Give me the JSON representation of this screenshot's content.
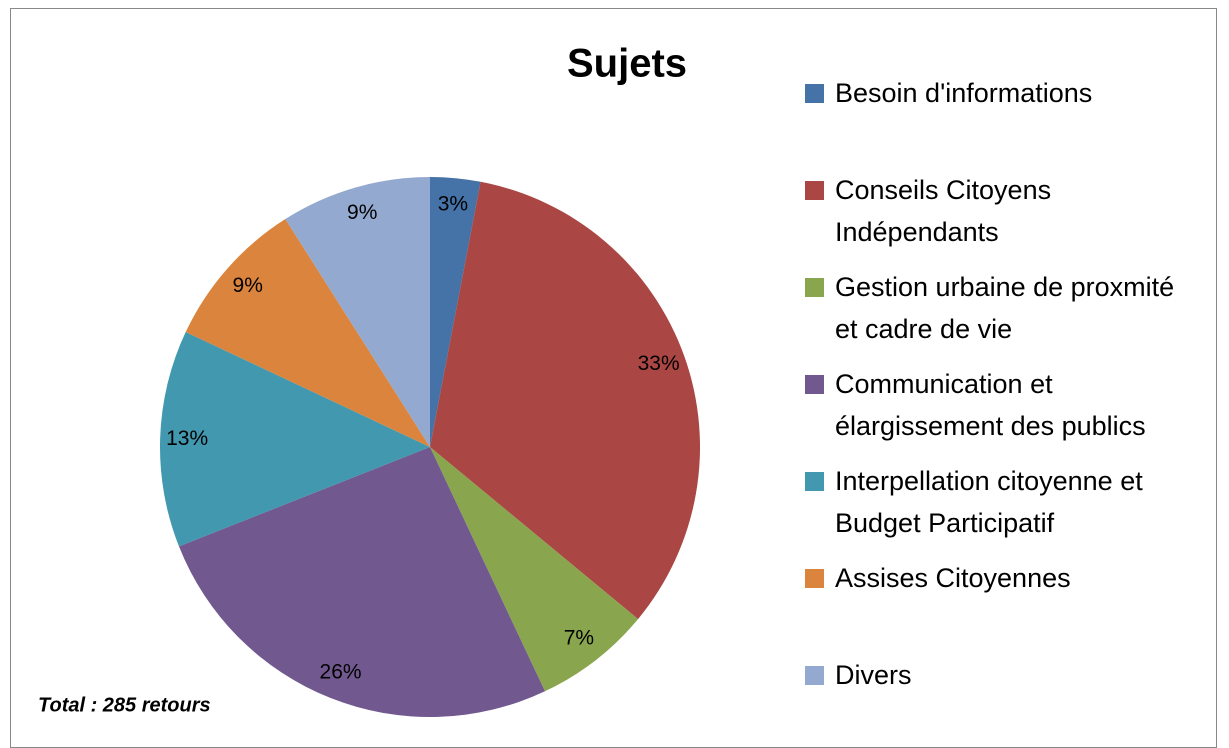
{
  "chart_data": {
    "type": "pie",
    "title": "Sujets",
    "categories": [
      "Besoin d'informations",
      "Conseils Citoyens Indépendants",
      "Gestion urbaine de proxmité et cadre de vie",
      "Communication et élargissement des publics",
      "Interpellation citoyenne et Budget Participatif",
      "Assises Citoyennes",
      "Divers"
    ],
    "values": [
      3,
      33,
      7,
      26,
      13,
      9,
      9
    ],
    "value_labels": [
      "3%",
      "33%",
      "7%",
      "26%",
      "13%",
      "9%",
      "9%"
    ],
    "colors": [
      "#4572a7",
      "#aa4643",
      "#89a54e",
      "#71588f",
      "#4198af",
      "#db843d",
      "#93a9cf"
    ],
    "annotation": "Total : 285 retours",
    "legend": "right"
  }
}
